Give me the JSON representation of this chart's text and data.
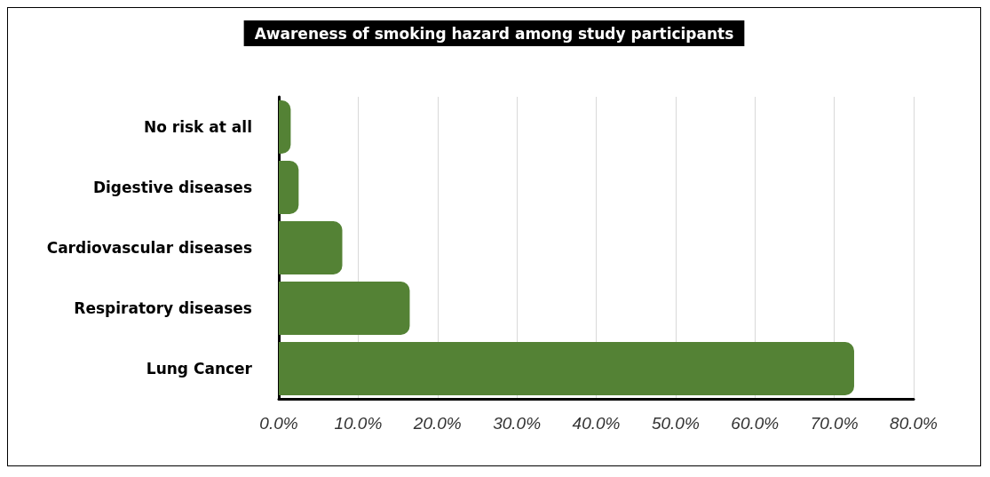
{
  "chart_data": {
    "type": "bar",
    "orientation": "horizontal",
    "title": "Awareness of smoking hazard among study participants",
    "categories": [
      "No risk at all",
      "Digestive diseases",
      "Cardiovascular diseases",
      "Respiratory diseases",
      "Lung Cancer"
    ],
    "values": [
      1.5,
      2.5,
      8,
      16.5,
      72.5
    ],
    "color": "#548235",
    "xlim": [
      0,
      80
    ],
    "xticks": [
      {
        "value": 0,
        "label": "0.0%"
      },
      {
        "value": 10,
        "label": "10.0%"
      },
      {
        "value": 20,
        "label": "20.0%"
      },
      {
        "value": 30,
        "label": "30.0%"
      },
      {
        "value": 40,
        "label": "40.0%"
      },
      {
        "value": 50,
        "label": "50.0%"
      },
      {
        "value": 60,
        "label": "60.0%"
      },
      {
        "value": 70,
        "label": "70.0%"
      },
      {
        "value": 80,
        "label": "80.0%"
      }
    ],
    "grid": "x"
  }
}
